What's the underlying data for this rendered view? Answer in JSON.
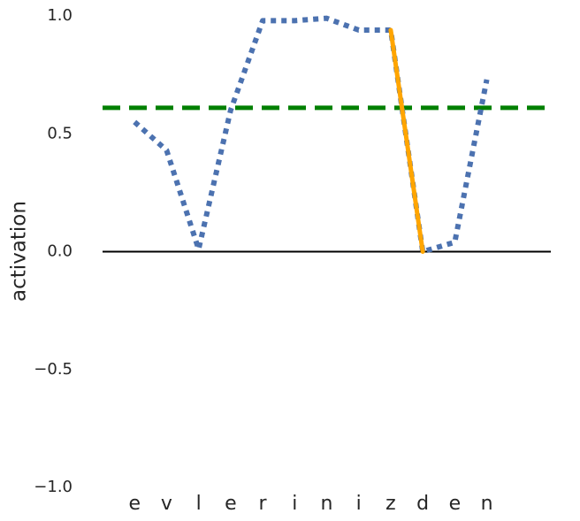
{
  "chart_data": {
    "type": "line",
    "ylabel": "activation",
    "categories": [
      "e",
      "v",
      "l",
      "e",
      "r",
      "i",
      "n",
      "i",
      "z",
      "d",
      "e",
      "n"
    ],
    "series": [
      {
        "color": "#4c72b0",
        "style": "dotted",
        "values": [
          0.55,
          0.43,
          0.01,
          0.6,
          0.98,
          0.98,
          0.99,
          0.94,
          0.94,
          0.0,
          0.04,
          0.73
        ]
      },
      {
        "color": "#ffa500",
        "style": "solid",
        "values": [
          null,
          null,
          null,
          null,
          null,
          null,
          null,
          null,
          0.94,
          0.0,
          null,
          null
        ]
      }
    ],
    "hlines": [
      {
        "value": 0.61,
        "color": "#008000",
        "style": "dashed"
      },
      {
        "value": 0,
        "color": "#000000",
        "style": "solid"
      }
    ],
    "xlim": [
      -1,
      13
    ],
    "ylim": [
      -1,
      1
    ],
    "yticks": [
      {
        "value": -1,
        "label": "−1.0"
      },
      {
        "value": -0.5,
        "label": "−0.5"
      },
      {
        "value": 0,
        "label": "0.0"
      },
      {
        "value": 0.5,
        "label": "0.5"
      },
      {
        "value": 1,
        "label": "1.0"
      }
    ],
    "grid": false
  }
}
